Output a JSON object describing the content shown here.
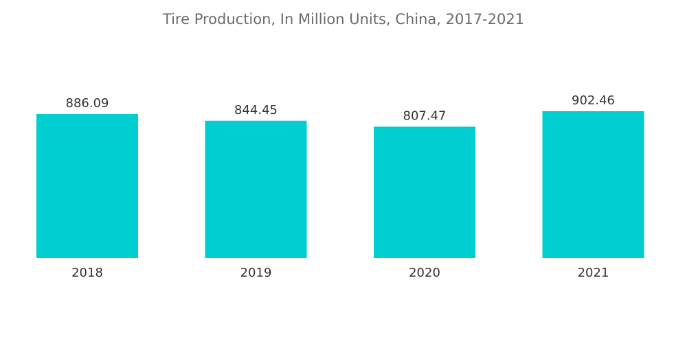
{
  "chart_data": {
    "type": "bar",
    "title": "Tire Production, In Million Units, China, 2017-2021",
    "categories": [
      "2018",
      "2019",
      "2020",
      "2021"
    ],
    "values": [
      886.09,
      844.45,
      807.47,
      902.46
    ],
    "value_labels": [
      "886.09",
      "844.45",
      "807.47",
      "902.46"
    ],
    "ylim": [
      0,
      902.46
    ],
    "grid": false,
    "legend": "none",
    "colors": {
      "bar": "#00CED1"
    }
  }
}
